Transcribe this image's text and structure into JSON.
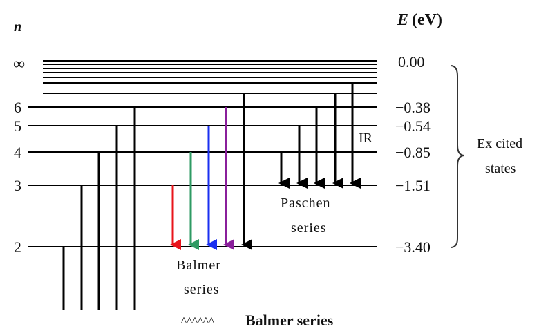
{
  "header": {
    "n_label": "n",
    "energy_label_symbol": "E",
    "energy_label_unit": "(eV)"
  },
  "levels": [
    {
      "n": "∞",
      "energy": "0.00"
    },
    {
      "n": "6",
      "energy": "−0.38"
    },
    {
      "n": "5",
      "energy": "−0.54"
    },
    {
      "n": "4",
      "energy": "−0.85"
    },
    {
      "n": "3",
      "energy": "−1.51"
    },
    {
      "n": "2",
      "energy": "−3.40"
    }
  ],
  "series": {
    "balmer_line1": "Balmer",
    "balmer_line2": "series",
    "paschen_line1": "Paschen",
    "paschen_line2": "series",
    "ir_label": "IR"
  },
  "bracket": {
    "line1": "Ex cited",
    "line2": "states"
  },
  "caption": {
    "prefix": "^^^^^^",
    "text": "Balmer series"
  },
  "colors": {
    "line": "#000000",
    "red": "#e8141b",
    "green": "#2e9a63",
    "blue": "#1a2ff0",
    "purple": "#8a1f9b",
    "black": "#000000"
  }
}
